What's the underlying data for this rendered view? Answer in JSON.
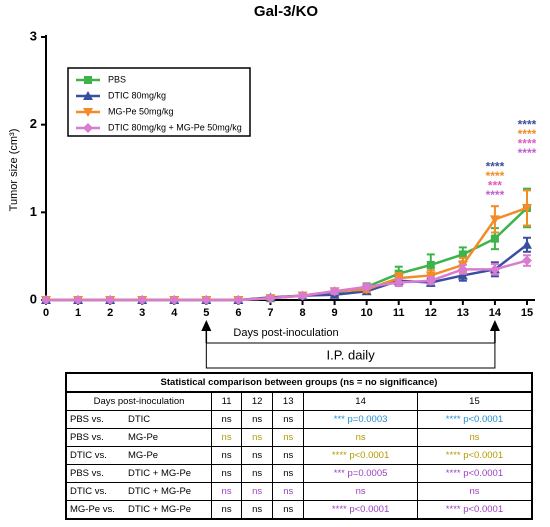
{
  "chart_data": {
    "type": "line",
    "title": "Gal-3/KO",
    "xlabel": "Days post-inoculation",
    "ylabel": "Tumor size (cm³)",
    "x": [
      0,
      1,
      2,
      3,
      4,
      5,
      6,
      7,
      8,
      9,
      10,
      11,
      12,
      13,
      14,
      15
    ],
    "xlim": [
      0,
      15.25
    ],
    "xticks": [
      0,
      1,
      2,
      3,
      4,
      5,
      6,
      7,
      8,
      9,
      10,
      11,
      12,
      13,
      14,
      15
    ],
    "ylim": [
      0,
      3
    ],
    "yticks": [
      0,
      1,
      2,
      3
    ],
    "grid": false,
    "legend": "upper left",
    "series": [
      {
        "name": "PBS",
        "color": "#3cb44b",
        "marker": "square",
        "values": [
          0,
          0,
          0,
          0,
          0,
          0,
          0,
          0.02,
          0.05,
          0.08,
          0.15,
          0.3,
          0.4,
          0.52,
          0.7,
          1.05
        ],
        "errors": [
          0,
          0,
          0,
          0,
          0,
          0,
          0,
          0.01,
          0.02,
          0.03,
          0.04,
          0.08,
          0.12,
          0.08,
          0.12,
          0.22
        ]
      },
      {
        "name": "DTIC 80mg/kg",
        "color": "#3a4fa0",
        "marker": "triangle",
        "values": [
          0,
          0,
          0,
          0,
          0,
          0,
          0,
          0.03,
          0.05,
          0.06,
          0.1,
          0.22,
          0.2,
          0.28,
          0.35,
          0.63
        ],
        "errors": [
          0,
          0,
          0,
          0,
          0,
          0,
          0,
          0.01,
          0.02,
          0.02,
          0.03,
          0.05,
          0.04,
          0.06,
          0.08,
          0.08
        ]
      },
      {
        "name": "MG-Pe 50mg/kg",
        "color": "#f28c28",
        "marker": "triangle-down",
        "values": [
          0,
          0,
          0,
          0,
          0,
          0,
          0,
          0.02,
          0.05,
          0.1,
          0.12,
          0.25,
          0.28,
          0.4,
          0.92,
          1.05
        ],
        "errors": [
          0,
          0,
          0,
          0,
          0,
          0,
          0,
          0.01,
          0.02,
          0.03,
          0.03,
          0.06,
          0.06,
          0.08,
          0.15,
          0.2
        ]
      },
      {
        "name": "DTIC 80mg/kg + MG-Pe 50mg/kg",
        "color": "#d97bd0",
        "marker": "diamond",
        "values": [
          0,
          0,
          0,
          0,
          0,
          0,
          0,
          0.02,
          0.05,
          0.1,
          0.15,
          0.2,
          0.22,
          0.35,
          0.35,
          0.45
        ],
        "errors": [
          0,
          0,
          0,
          0,
          0,
          0,
          0,
          0.01,
          0.02,
          0.03,
          0.03,
          0.04,
          0.04,
          0.05,
          0.06,
          0.06
        ]
      }
    ],
    "significance": [
      {
        "x": 14,
        "labels": [
          {
            "text": "****",
            "color": "#3a4fa0"
          },
          {
            "text": "****",
            "color": "#f28c28"
          },
          {
            "text": "***",
            "color": "#e05cc0"
          },
          {
            "text": "****",
            "color": "#c060d0"
          }
        ]
      },
      {
        "x": 15,
        "labels": [
          {
            "text": "****",
            "color": "#3a4fa0"
          },
          {
            "text": "****",
            "color": "#f28c28"
          },
          {
            "text": "****",
            "color": "#e05cc0"
          },
          {
            "text": "****",
            "color": "#c060d0"
          }
        ]
      }
    ],
    "treatment": {
      "text": "I.P. daily",
      "x": [
        5,
        14
      ]
    }
  },
  "table": {
    "title": "Statistical comparison between groups (ns = no significance)",
    "header": [
      "Days post-inoculation",
      "11",
      "12",
      "13",
      "14",
      "15"
    ],
    "rows": [
      {
        "group1": "PBS vs.",
        "group2": "DTIC",
        "cells": [
          "ns",
          "ns",
          "ns",
          "*** p=0.0003",
          "**** p<0.0001"
        ],
        "colors": [
          "#000000",
          "#000000",
          "#000000",
          "#1f8fd0",
          "#1f8fd0"
        ]
      },
      {
        "group1": "PBS vs.",
        "group2": "MG-Pe",
        "cells": [
          "ns",
          "ns",
          "ns",
          "ns",
          "ns"
        ],
        "colors": [
          "#b59a00",
          "#b59a00",
          "#b59a00",
          "#b59a00",
          "#b59a00"
        ]
      },
      {
        "group1": "DTIC vs.",
        "group2": "MG-Pe",
        "cells": [
          "ns",
          "ns",
          "ns",
          "**** p<0.0001",
          "**** p<0.0001"
        ],
        "colors": [
          "#000000",
          "#000000",
          "#000000",
          "#b59a00",
          "#b59a00"
        ]
      },
      {
        "group1": "PBS vs.",
        "group2": "DTIC + MG-Pe",
        "cells": [
          "ns",
          "ns",
          "ns",
          "*** p=0.0005",
          "**** p<0.0001"
        ],
        "colors": [
          "#000000",
          "#000000",
          "#000000",
          "#9b3fc0",
          "#9b3fc0"
        ]
      },
      {
        "group1": "DTIC vs.",
        "group2": "DTIC + MG-Pe",
        "cells": [
          "ns",
          "ns",
          "ns",
          "ns",
          "ns"
        ],
        "colors": [
          "#9b3fc0",
          "#9b3fc0",
          "#9b3fc0",
          "#9b3fc0",
          "#9b3fc0"
        ]
      },
      {
        "group1": "MG-Pe vs.",
        "group2": "DTIC + MG-Pe",
        "cells": [
          "ns",
          "ns",
          "ns",
          "**** p<0.0001",
          "**** p<0.0001"
        ],
        "colors": [
          "#000000",
          "#000000",
          "#000000",
          "#9b3fc0",
          "#9b3fc0"
        ]
      }
    ]
  }
}
